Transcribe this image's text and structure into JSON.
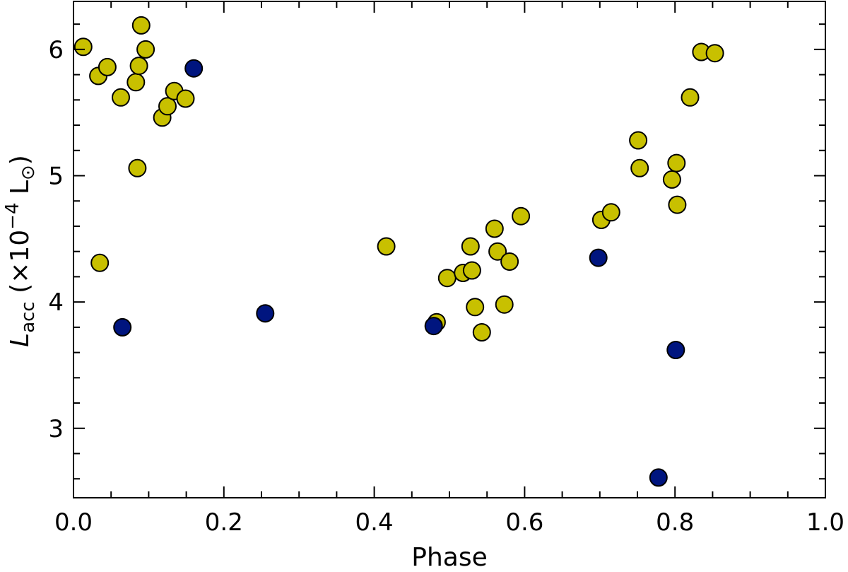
{
  "chart_data": {
    "type": "scatter",
    "title": "",
    "xlabel": "Phase",
    "ylabel": {
      "main": "L",
      "sub": "acc",
      "rest": " (×10",
      "exp": "−4",
      "unit": " L",
      "unit_sub": "⊙",
      "close": ")"
    },
    "xlim": [
      0.0,
      1.0
    ],
    "ylim": [
      2.45,
      6.38
    ],
    "x_ticks": [
      0.0,
      0.2,
      0.4,
      0.6,
      0.8,
      1.0
    ],
    "x_tick_labels": [
      "0.0",
      "0.2",
      "0.4",
      "0.6",
      "0.8",
      "1.0"
    ],
    "y_ticks": [
      3,
      4,
      5,
      6
    ],
    "y_tick_labels": [
      "3",
      "4",
      "5",
      "6"
    ],
    "grid": false,
    "colors": {
      "yellow_fill": "#c8c000",
      "blue_fill": "#00157f",
      "marker_edge": "#000000"
    },
    "series": [
      {
        "color": "#c8c000",
        "points": [
          [
            0.013,
            6.02
          ],
          [
            0.033,
            5.79
          ],
          [
            0.045,
            5.86
          ],
          [
            0.063,
            5.62
          ],
          [
            0.083,
            5.74
          ],
          [
            0.087,
            5.87
          ],
          [
            0.09,
            6.19
          ],
          [
            0.096,
            6.0
          ],
          [
            0.118,
            5.46
          ],
          [
            0.125,
            5.55
          ],
          [
            0.134,
            5.67
          ],
          [
            0.149,
            5.61
          ],
          [
            0.085,
            5.06
          ],
          [
            0.035,
            4.31
          ],
          [
            0.416,
            4.44
          ],
          [
            0.483,
            3.84
          ],
          [
            0.497,
            4.19
          ],
          [
            0.518,
            4.23
          ],
          [
            0.528,
            4.44
          ],
          [
            0.53,
            4.25
          ],
          [
            0.534,
            3.96
          ],
          [
            0.543,
            3.76
          ],
          [
            0.56,
            4.58
          ],
          [
            0.564,
            4.4
          ],
          [
            0.573,
            3.98
          ],
          [
            0.58,
            4.32
          ],
          [
            0.595,
            4.68
          ],
          [
            0.702,
            4.65
          ],
          [
            0.715,
            4.71
          ],
          [
            0.751,
            5.28
          ],
          [
            0.753,
            5.06
          ],
          [
            0.796,
            4.97
          ],
          [
            0.802,
            5.1
          ],
          [
            0.803,
            4.77
          ],
          [
            0.82,
            5.62
          ],
          [
            0.835,
            5.98
          ],
          [
            0.853,
            5.97
          ]
        ]
      },
      {
        "color": "#00157f",
        "points": [
          [
            0.065,
            3.8
          ],
          [
            0.16,
            5.85
          ],
          [
            0.255,
            3.91
          ],
          [
            0.479,
            3.81
          ],
          [
            0.698,
            4.35
          ],
          [
            0.778,
            2.61
          ],
          [
            0.801,
            3.62
          ]
        ]
      }
    ]
  }
}
